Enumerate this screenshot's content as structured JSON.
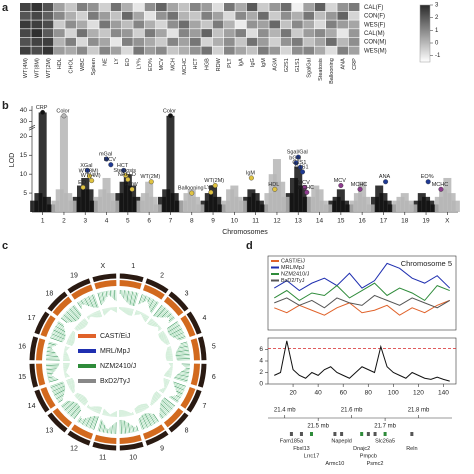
{
  "panels": [
    "a",
    "b",
    "c",
    "d"
  ],
  "chart_data": [
    {
      "type": "heatmap",
      "categories": [
        "WT(4M)",
        "WT(8M)",
        "WT(2M)",
        "HDL",
        "CHOL",
        "WBC",
        "Spleen",
        "NE",
        "LY",
        "EO",
        "LY%",
        "EO%",
        "MCV",
        "MCH",
        "MCHC",
        "HCT",
        "HGB",
        "RDW",
        "PLT",
        "IgA",
        "IgG",
        "IgM",
        "AGM",
        "G2S1",
        "G1S1",
        "SgalGal",
        "Steatosis",
        "Ballooning",
        "ANA",
        "CRP"
      ],
      "rows": [
        "CAL(F)",
        "CON(F)",
        "WES(F)",
        "CAL(M)",
        "CON(M)",
        "WES(M)"
      ],
      "values": [
        [
          2.5,
          2.8,
          2.2,
          0.5,
          -0.3,
          1.2,
          0.8,
          -0.5,
          1.5,
          0.2,
          -1.0,
          0.9,
          1.8,
          0.4,
          -0.2,
          1.1,
          0.6,
          -0.8,
          1.4,
          0.3,
          2.0,
          -0.4,
          0.7,
          1.6,
          -1.2,
          0.5,
          1.9,
          -0.6,
          0.8,
          1.3
        ],
        [
          2.1,
          2.4,
          1.9,
          1.0,
          0.2,
          -0.5,
          1.3,
          0.6,
          -0.2,
          1.7,
          0.4,
          -0.9,
          0.8,
          1.5,
          0.1,
          -0.3,
          1.2,
          0.5,
          -0.7,
          1.0,
          0.3,
          1.6,
          -0.4,
          0.9,
          0.2,
          1.4,
          -0.1,
          0.7,
          1.8,
          -0.6
        ],
        [
          2.7,
          2.6,
          2.3,
          -0.4,
          0.9,
          0.3,
          -0.8,
          1.4,
          0.6,
          -0.1,
          1.1,
          0.2,
          -0.6,
          0.9,
          1.6,
          0.4,
          -0.3,
          1.3,
          0.1,
          -1.1,
          0.8,
          0.5,
          1.7,
          -0.2,
          1.0,
          0.3,
          -0.7,
          1.2,
          0.6,
          0.4
        ],
        [
          2.4,
          2.9,
          2.0,
          0.8,
          -0.6,
          1.5,
          0.2,
          -0.3,
          1.0,
          0.7,
          -0.5,
          1.3,
          0.4,
          -0.9,
          1.1,
          0.6,
          1.8,
          -0.2,
          0.5,
          1.2,
          -0.8,
          0.9,
          0.1,
          1.4,
          -0.4,
          0.6,
          1.0,
          0.3,
          -1.0,
          0.7
        ],
        [
          2.2,
          2.5,
          2.6,
          0.1,
          1.2,
          -0.7,
          0.9,
          0.4,
          -1.0,
          1.2,
          0.8,
          0.3,
          -0.4,
          1.1,
          0.5,
          1.4,
          -0.6,
          0.2,
          0.9,
          -0.3,
          1.5,
          0.6,
          -0.5,
          0.8,
          1.3,
          -0.2,
          0.4,
          1.6,
          0.0,
          0.9
        ],
        [
          2.6,
          2.3,
          2.8,
          0.6,
          0.3,
          1.0,
          -0.4,
          1.1,
          0.5,
          -0.7,
          1.4,
          0.6,
          1.0,
          -0.3,
          0.2,
          0.8,
          1.5,
          -0.5,
          1.1,
          0.4,
          -0.2,
          1.3,
          0.7,
          -0.6,
          0.9,
          1.1,
          0.3,
          -0.8,
          1.2,
          0.5
        ]
      ],
      "clim": [
        -1.5,
        3
      ],
      "cticks": [
        3,
        2,
        1,
        0,
        -1
      ],
      "cmap": [
        "#ffffff",
        "#2b2b2b"
      ]
    },
    {
      "type": "manhattan",
      "ylabel": "LOD",
      "xlabel": "Chromosomes",
      "xlim": [
        0,
        20
      ],
      "xticks": [
        {
          "value": 0.5,
          "label": "1"
        },
        {
          "value": 1.5,
          "label": "2"
        },
        {
          "value": 2.5,
          "label": "3"
        },
        {
          "value": 3.5,
          "label": "4"
        },
        {
          "value": 4.5,
          "label": "5"
        },
        {
          "value": 5.5,
          "label": "6"
        },
        {
          "value": 6.5,
          "label": "7"
        },
        {
          "value": 7.5,
          "label": "8"
        },
        {
          "value": 8.5,
          "label": "9"
        },
        {
          "value": 9.5,
          "label": "10"
        },
        {
          "value": 10.5,
          "label": "11"
        },
        {
          "value": 11.5,
          "label": "12"
        },
        {
          "value": 12.5,
          "label": "13"
        },
        {
          "value": 13.5,
          "label": "14"
        },
        {
          "value": 14.5,
          "label": "15"
        },
        {
          "value": 15.5,
          "label": "16"
        },
        {
          "value": 16.5,
          "label": "17"
        },
        {
          "value": 17.5,
          "label": "18"
        },
        {
          "value": 18.5,
          "label": "19"
        },
        {
          "value": 19.5,
          "label": "X"
        }
      ],
      "ylim": [
        0,
        42
      ],
      "axis_break": [
        22,
        28
      ],
      "yticks": [
        5,
        10,
        15,
        20,
        30,
        40
      ],
      "series": [
        {
          "color": "#111111",
          "x": [
            0.1,
            0.3,
            0.5,
            0.7,
            0.9,
            2.1,
            2.3,
            2.5,
            2.7,
            2.9,
            4.1,
            4.3,
            4.5,
            4.7,
            4.9,
            6.1,
            6.3,
            6.5,
            6.7,
            6.9,
            8.1,
            8.3,
            8.5,
            8.7,
            8.9,
            10.1,
            10.3,
            10.5,
            10.7,
            10.9,
            12.1,
            12.3,
            12.5,
            12.7,
            12.9,
            14.1,
            14.3,
            14.5,
            14.7,
            14.9,
            16.1,
            16.3,
            16.5,
            16.7,
            16.9,
            18.1,
            18.3,
            18.5,
            18.7,
            18.9
          ],
          "values": [
            3,
            5,
            38,
            4,
            2,
            4,
            7,
            9,
            6,
            3,
            5,
            8,
            10,
            7,
            4,
            4,
            6,
            35,
            5,
            3,
            3,
            5,
            7,
            4,
            2,
            4,
            6,
            5,
            3,
            2,
            5,
            9,
            12,
            7,
            4,
            3,
            4,
            6,
            3,
            2,
            4,
            7,
            5,
            3,
            2,
            3,
            5,
            4,
            3,
            2
          ]
        },
        {
          "color": "#b5b5b5",
          "x": [
            1.1,
            1.3,
            1.5,
            1.7,
            1.9,
            3.1,
            3.3,
            3.5,
            3.7,
            3.9,
            5.1,
            5.3,
            5.5,
            5.7,
            5.9,
            7.1,
            7.3,
            7.5,
            7.7,
            7.9,
            9.1,
            9.3,
            9.5,
            9.7,
            9.9,
            11.1,
            11.3,
            11.5,
            11.7,
            11.9,
            13.1,
            13.3,
            13.5,
            13.7,
            13.9,
            15.1,
            15.3,
            15.5,
            15.7,
            15.9,
            17.1,
            17.3,
            17.5,
            17.7,
            17.9,
            19.1,
            19.3,
            19.5,
            19.7,
            19.9
          ],
          "values": [
            3,
            6,
            35,
            5,
            3,
            4,
            6,
            9,
            5,
            3,
            3,
            5,
            8,
            4,
            2,
            3,
            5,
            6,
            4,
            2,
            3,
            6,
            7,
            4,
            3,
            5,
            10,
            14,
            8,
            4,
            4,
            7,
            6,
            3,
            2,
            3,
            5,
            8,
            4,
            2,
            3,
            4,
            5,
            3,
            2,
            4,
            6,
            9,
            5,
            3
          ]
        }
      ],
      "annotations": [
        {
          "text": "CRP",
          "x": 0.5,
          "y": 38,
          "color": "#111111"
        },
        {
          "text": "Color",
          "x": 1.5,
          "y": 35,
          "color": "#b5b5b5"
        },
        {
          "text": "Color",
          "x": 6.5,
          "y": 35,
          "color": "#111111"
        },
        {
          "text": "mGal",
          "x": 3.5,
          "y": 14,
          "color": "#1f3a93"
        },
        {
          "text": "MCV",
          "x": 3.7,
          "y": 12.5,
          "color": "#1f3a93"
        },
        {
          "text": "XGal",
          "x": 2.6,
          "y": 11,
          "color": "#1f3a93"
        },
        {
          "text": "WT(8M)",
          "x": 2.7,
          "y": 9.5,
          "color": "#e0c341"
        },
        {
          "text": "WT(4M)",
          "x": 2.8,
          "y": 8.3,
          "color": "#e0c341"
        },
        {
          "text": "EO",
          "x": 2.4,
          "y": 6.5,
          "color": "#e0c341"
        },
        {
          "text": "HCT",
          "x": 4.3,
          "y": 11,
          "color": "#1f3a93"
        },
        {
          "text": "Steatosis",
          "x": 4.4,
          "y": 9.7,
          "color": "#e0c341"
        },
        {
          "text": "NAFLD",
          "x": 4.5,
          "y": 8.6,
          "color": "#e0c341"
        },
        {
          "text": "RDW",
          "x": 4.7,
          "y": 6,
          "color": "#e0c341"
        },
        {
          "text": "WT(2M)",
          "x": 5.6,
          "y": 8,
          "color": "#e0c341"
        },
        {
          "text": "Ballooning",
          "x": 7.5,
          "y": 5,
          "color": "#e0c341"
        },
        {
          "text": "LY%",
          "x": 8.4,
          "y": 5.2,
          "color": "#e0c341"
        },
        {
          "text": "WT(2M)",
          "x": 8.6,
          "y": 7,
          "color": "#e0c341"
        },
        {
          "text": "IgM",
          "x": 10.3,
          "y": 9,
          "color": "#e0c341"
        },
        {
          "text": "HDL",
          "x": 11.4,
          "y": 6,
          "color": "#e0c341"
        },
        {
          "text": "Sgal/Gal",
          "x": 12.5,
          "y": 14.5,
          "color": "#1f3a93"
        },
        {
          "text": "bGal",
          "x": 12.4,
          "y": 13,
          "color": "#1f3a93"
        },
        {
          "text": "G2S1",
          "x": 12.6,
          "y": 11.8,
          "color": "#1f3a93"
        },
        {
          "text": "G1S1",
          "x": 12.7,
          "y": 10.6,
          "color": "#1f3a93"
        },
        {
          "text": "MCV",
          "x": 12.8,
          "y": 6.5,
          "color": "#8e3b8e"
        },
        {
          "text": "MCHC",
          "x": 12.9,
          "y": 5.2,
          "color": "#8e3b8e"
        },
        {
          "text": "MCV",
          "x": 14.5,
          "y": 7,
          "color": "#8e3b8e"
        },
        {
          "text": "MCHC",
          "x": 15.4,
          "y": 6,
          "color": "#8e3b8e"
        },
        {
          "text": "ANA",
          "x": 16.6,
          "y": 8,
          "color": "#1f3a93"
        },
        {
          "text": "EO%",
          "x": 18.6,
          "y": 8,
          "color": "#1f3a93"
        },
        {
          "text": "MCHC",
          "x": 19.2,
          "y": 6,
          "color": "#8e3b8e"
        }
      ]
    },
    {
      "type": "circos",
      "categories": [
        "1",
        "2",
        "3",
        "4",
        "5",
        "6",
        "7",
        "8",
        "9",
        "10",
        "11",
        "12",
        "13",
        "14",
        "15",
        "16",
        "17",
        "18",
        "19",
        "X"
      ],
      "series": [
        {
          "name": "CAST/EiJ",
          "color": "#e0622a"
        },
        {
          "name": "MRL/MpJ",
          "color": "#1f2fb0"
        },
        {
          "name": "NZM2410/J",
          "color": "#2e8b3a"
        },
        {
          "name": "BxD2/TyJ",
          "color": "#888888"
        }
      ]
    },
    {
      "type": "line",
      "title": "Chromosome 5",
      "x": [
        5,
        15,
        25,
        35,
        45,
        55,
        65,
        75,
        85,
        95,
        105,
        115,
        125,
        135,
        145
      ],
      "xlim": [
        0,
        150
      ],
      "ylim": [
        -1.5,
        1.5
      ],
      "series": [
        {
          "name": "CAST/EiJ",
          "color": "#e0622a",
          "values": [
            -0.6,
            -0.8,
            -0.5,
            -0.7,
            -0.9,
            -0.6,
            -0.4,
            -0.8,
            -0.7,
            -0.5,
            -0.9,
            -0.6,
            -0.8,
            -0.5,
            -0.3
          ]
        },
        {
          "name": "MRL/MpJ",
          "color": "#1f2fb0",
          "values": [
            0.2,
            0.5,
            0.1,
            0.4,
            0.6,
            0.3,
            0.8,
            0.2,
            0.5,
            1.2,
            1.0,
            0.6,
            0.4,
            0.7,
            0.2
          ]
        },
        {
          "name": "NZM2410/J",
          "color": "#2e8b3a",
          "values": [
            -0.2,
            0.1,
            -0.3,
            0.0,
            -0.1,
            0.3,
            -0.2,
            0.1,
            0.4,
            -0.1,
            0.2,
            0.0,
            -0.3,
            0.3,
            0.1
          ]
        },
        {
          "name": "BxD2/TyJ",
          "color": "#555555",
          "values": [
            -0.4,
            -0.2,
            -0.5,
            -0.3,
            -0.6,
            -0.2,
            -0.4,
            -0.5,
            -0.1,
            -0.3,
            -0.5,
            -0.2,
            -0.4,
            -0.6,
            -0.3
          ]
        }
      ]
    },
    {
      "type": "line",
      "x": [
        5,
        10,
        15,
        20,
        25,
        30,
        35,
        40,
        45,
        50,
        55,
        60,
        65,
        70,
        75,
        80,
        85,
        90,
        95,
        100,
        105,
        110,
        115,
        120,
        125,
        130,
        135,
        140,
        145
      ],
      "xlim": [
        0,
        150
      ],
      "xticks": [
        20,
        40,
        60,
        80,
        100,
        120,
        140
      ],
      "ylim": [
        0,
        8
      ],
      "yticks": [
        0,
        2,
        4,
        6
      ],
      "threshold": 6.2,
      "threshold_color": "#d62728",
      "series": [
        {
          "color": "#111111",
          "values": [
            1.5,
            2,
            7.5,
            2.5,
            1.5,
            1,
            2,
            1.5,
            2.5,
            3,
            2,
            1.5,
            1,
            2,
            3,
            2.5,
            2,
            6.5,
            3,
            2,
            1.5,
            1,
            2,
            1.5,
            1,
            0.8,
            1.2,
            0.8,
            0.5
          ]
        }
      ]
    },
    {
      "type": "genes",
      "xlim": [
        21.35,
        21.9
      ],
      "xticks": [
        {
          "value": 21.4,
          "label": "21.4 mb"
        },
        {
          "value": 21.6,
          "label": "21.6 mb"
        },
        {
          "value": 21.8,
          "label": "21.8 mb"
        }
      ],
      "xticks_bottom": [
        {
          "value": 21.5,
          "label": "21.5 mb"
        },
        {
          "value": 21.7,
          "label": "21.7 mb"
        }
      ],
      "genes": [
        {
          "name": "Fam185a",
          "pos": 21.42
        },
        {
          "name": "Fbxl13",
          "pos": 21.45
        },
        {
          "name": "Lrrc17",
          "pos": 21.48
        },
        {
          "name": "Armc10",
          "pos": 21.55
        },
        {
          "name": "Napepld",
          "pos": 21.57
        },
        {
          "name": "Dnajc2",
          "pos": 21.63
        },
        {
          "name": "Pmpcb",
          "pos": 21.65
        },
        {
          "name": "Psmc2",
          "pos": 21.67
        },
        {
          "name": "Slc26a5",
          "pos": 21.7
        },
        {
          "name": "Reln",
          "pos": 21.78
        }
      ]
    }
  ]
}
